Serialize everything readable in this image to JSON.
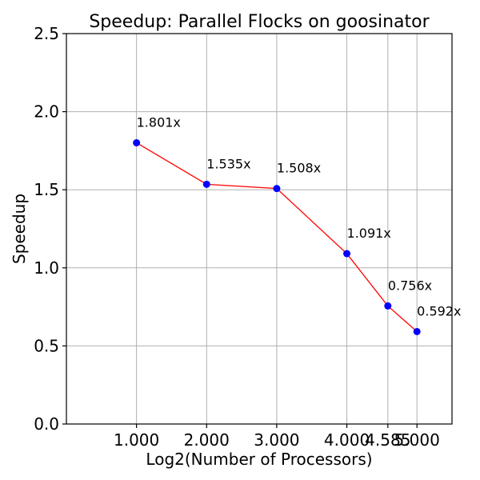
{
  "chart_data": {
    "type": "line",
    "title": "Speedup: Parallel Flocks on goosinator",
    "xlabel": "Log2(Number of Processors)",
    "ylabel": "Speedup",
    "x": [
      1.0,
      2.0,
      3.0,
      4.0,
      4.585,
      5.0
    ],
    "x_tick_labels": [
      "1.000",
      "2.000",
      "3.000",
      "4.000",
      "4.585",
      "5.000"
    ],
    "y_ticks": [
      0.0,
      0.5,
      1.0,
      1.5,
      2.0,
      2.5
    ],
    "y_tick_labels": [
      "0.0",
      "0.5",
      "1.0",
      "1.5",
      "2.0",
      "2.5"
    ],
    "xlim": [
      0.0,
      5.5
    ],
    "ylim": [
      0.0,
      2.5
    ],
    "grid": true,
    "series": [
      {
        "values": [
          1.801,
          1.535,
          1.508,
          1.091,
          0.756,
          0.592
        ],
        "labels": [
          "1.801x",
          "1.535x",
          "1.508x",
          "1.091x",
          "0.756x",
          "0.592x"
        ],
        "line_color": "#ff0000",
        "marker_color": "#0000ff"
      }
    ]
  }
}
